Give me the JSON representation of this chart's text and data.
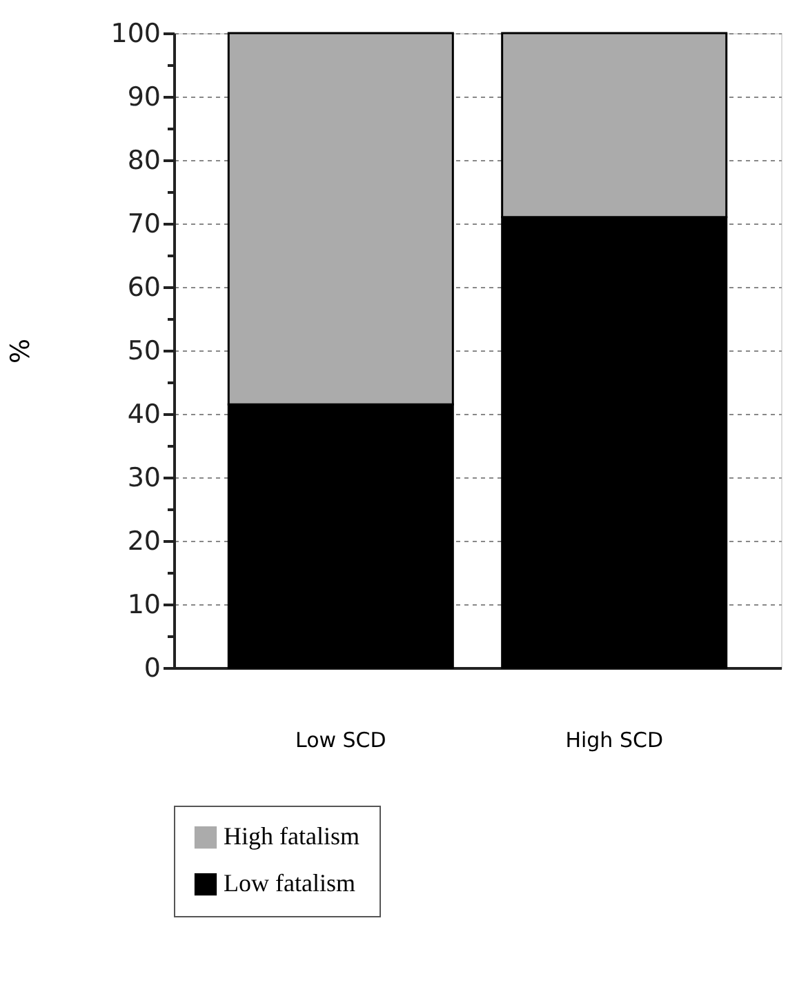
{
  "chart_data": {
    "type": "bar",
    "stacked": true,
    "ylabel": "%",
    "categories": [
      "Low SCD",
      "High SCD"
    ],
    "series": [
      {
        "name": "Low fatalism",
        "color": "#000000",
        "values": [
          41.5,
          71
        ]
      },
      {
        "name": "High fatalism",
        "color": "#ababab",
        "values": [
          58.5,
          29
        ]
      }
    ],
    "ylim": [
      0,
      100
    ],
    "yticks": [
      0,
      {
        "value": 5,
        "label": null
      },
      10,
      {
        "value": 15,
        "label": null
      },
      20,
      {
        "value": 25,
        "label": null
      },
      30,
      {
        "value": 35,
        "label": null
      },
      40,
      {
        "value": 45,
        "label": null
      },
      50,
      {
        "value": 55,
        "label": null
      },
      60,
      {
        "value": 65,
        "label": null
      },
      70,
      {
        "value": 75,
        "label": null
      },
      80,
      {
        "value": 85,
        "label": null
      },
      90,
      {
        "value": 95,
        "label": null
      },
      100
    ],
    "grid": "y",
    "legend": "bottom"
  }
}
